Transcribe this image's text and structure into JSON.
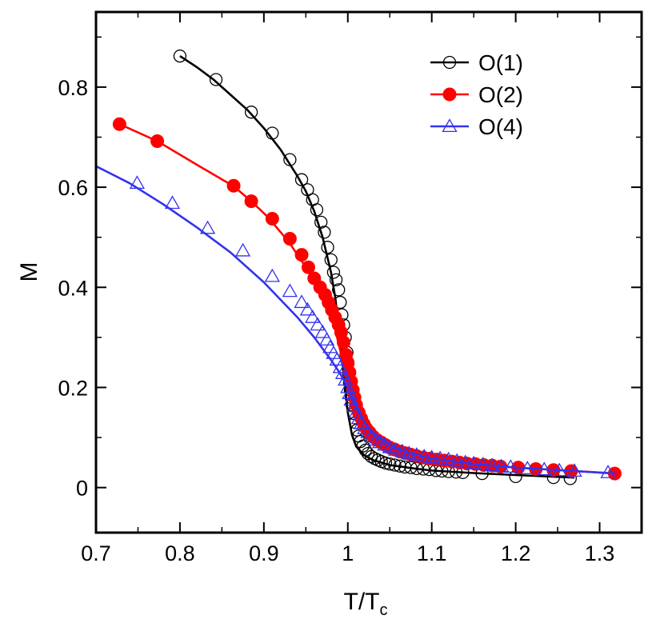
{
  "chart_data": {
    "type": "line",
    "title": "",
    "xlabel": "T/T",
    "xlabel_subscript": "c",
    "ylabel": "M",
    "xlim": [
      0.7,
      1.35
    ],
    "ylim": [
      -0.09,
      0.95
    ],
    "xticks": [
      0.7,
      0.8,
      0.9,
      1.0,
      1.1,
      1.2,
      1.3
    ],
    "xtick_labels": [
      "0.7",
      "0.8",
      "0.9",
      "1",
      "1.1",
      "1.2",
      "1.3"
    ],
    "yticks": [
      0,
      0.2,
      0.4,
      0.6,
      0.8
    ],
    "ytick_labels": [
      "0",
      "0.2",
      "0.4",
      "0.6",
      "0.8"
    ],
    "grid": false,
    "legend_position": "top-right",
    "series": [
      {
        "name": "O(1)",
        "color": "#000000",
        "marker": "open-circle",
        "curve": [
          [
            0.8,
            0.862
          ],
          [
            0.82,
            0.84
          ],
          [
            0.84,
            0.815
          ],
          [
            0.86,
            0.785
          ],
          [
            0.88,
            0.755
          ],
          [
            0.9,
            0.718
          ],
          [
            0.92,
            0.675
          ],
          [
            0.94,
            0.622
          ],
          [
            0.95,
            0.592
          ],
          [
            0.96,
            0.552
          ],
          [
            0.97,
            0.5
          ],
          [
            0.98,
            0.43
          ],
          [
            0.985,
            0.38
          ],
          [
            0.99,
            0.31
          ],
          [
            0.995,
            0.225
          ],
          [
            1.0,
            0.15
          ],
          [
            1.005,
            0.105
          ],
          [
            1.01,
            0.082
          ],
          [
            1.02,
            0.064
          ],
          [
            1.03,
            0.055
          ],
          [
            1.05,
            0.045
          ],
          [
            1.08,
            0.038
          ],
          [
            1.1,
            0.034
          ],
          [
            1.15,
            0.029
          ],
          [
            1.2,
            0.025
          ],
          [
            1.27,
            0.02
          ]
        ],
        "points": [
          [
            0.8,
            0.862
          ],
          [
            0.843,
            0.815
          ],
          [
            0.885,
            0.75
          ],
          [
            0.91,
            0.708
          ],
          [
            0.931,
            0.655
          ],
          [
            0.945,
            0.615
          ],
          [
            0.952,
            0.595
          ],
          [
            0.958,
            0.575
          ],
          [
            0.963,
            0.555
          ],
          [
            0.968,
            0.53
          ],
          [
            0.972,
            0.51
          ],
          [
            0.976,
            0.48
          ],
          [
            0.98,
            0.455
          ],
          [
            0.983,
            0.43
          ],
          [
            0.986,
            0.415
          ],
          [
            0.989,
            0.395
          ],
          [
            0.991,
            0.37
          ],
          [
            0.993,
            0.345
          ],
          [
            0.995,
            0.325
          ],
          [
            0.997,
            0.3
          ],
          [
            0.999,
            0.27
          ],
          [
            1.0,
            0.25
          ],
          [
            1.001,
            0.228
          ],
          [
            1.002,
            0.21
          ],
          [
            1.003,
            0.195
          ],
          [
            1.004,
            0.18
          ],
          [
            1.005,
            0.165
          ],
          [
            1.007,
            0.148
          ],
          [
            1.009,
            0.13
          ],
          [
            1.011,
            0.115
          ],
          [
            1.013,
            0.103
          ],
          [
            1.015,
            0.092
          ],
          [
            1.018,
            0.083
          ],
          [
            1.021,
            0.075
          ],
          [
            1.024,
            0.068
          ],
          [
            1.028,
            0.062
          ],
          [
            1.032,
            0.058
          ],
          [
            1.036,
            0.055
          ],
          [
            1.04,
            0.052
          ],
          [
            1.045,
            0.049
          ],
          [
            1.05,
            0.047
          ],
          [
            1.056,
            0.045
          ],
          [
            1.062,
            0.043
          ],
          [
            1.068,
            0.041
          ],
          [
            1.075,
            0.04
          ],
          [
            1.082,
            0.038
          ],
          [
            1.09,
            0.037
          ],
          [
            1.097,
            0.036
          ],
          [
            1.105,
            0.034
          ],
          [
            1.112,
            0.033
          ],
          [
            1.12,
            0.032
          ],
          [
            1.129,
            0.031
          ],
          [
            1.137,
            0.03
          ],
          [
            1.16,
            0.028
          ],
          [
            1.2,
            0.022
          ],
          [
            1.245,
            0.02
          ],
          [
            1.265,
            0.018
          ]
        ]
      },
      {
        "name": "O(2)",
        "color": "#ff0000",
        "marker": "filled-circle",
        "curve": [
          [
            0.728,
            0.726
          ],
          [
            0.773,
            0.692
          ],
          [
            0.82,
            0.645
          ],
          [
            0.864,
            0.602
          ],
          [
            0.885,
            0.572
          ],
          [
            0.905,
            0.54
          ],
          [
            0.93,
            0.49
          ],
          [
            0.95,
            0.44
          ],
          [
            0.965,
            0.4
          ],
          [
            0.975,
            0.365
          ],
          [
            0.985,
            0.315
          ],
          [
            0.993,
            0.26
          ],
          [
            1.0,
            0.21
          ],
          [
            1.005,
            0.175
          ],
          [
            1.01,
            0.145
          ],
          [
            1.02,
            0.115
          ],
          [
            1.03,
            0.095
          ],
          [
            1.05,
            0.075
          ],
          [
            1.07,
            0.064
          ],
          [
            1.1,
            0.055
          ],
          [
            1.15,
            0.046
          ],
          [
            1.2,
            0.04
          ],
          [
            1.25,
            0.035
          ],
          [
            1.32,
            0.028
          ]
        ],
        "points": [
          [
            0.728,
            0.726
          ],
          [
            0.773,
            0.692
          ],
          [
            0.864,
            0.603
          ],
          [
            0.885,
            0.572
          ],
          [
            0.91,
            0.537
          ],
          [
            0.931,
            0.497
          ],
          [
            0.945,
            0.465
          ],
          [
            0.953,
            0.44
          ],
          [
            0.96,
            0.418
          ],
          [
            0.967,
            0.4
          ],
          [
            0.973,
            0.385
          ],
          [
            0.977,
            0.37
          ],
          [
            0.981,
            0.355
          ],
          [
            0.985,
            0.34
          ],
          [
            0.989,
            0.325
          ],
          [
            0.992,
            0.31
          ],
          [
            0.995,
            0.29
          ],
          [
            0.998,
            0.265
          ],
          [
            1.0,
            0.248
          ],
          [
            1.002,
            0.23
          ],
          [
            1.004,
            0.212
          ],
          [
            1.006,
            0.195
          ],
          [
            1.008,
            0.18
          ],
          [
            1.01,
            0.165
          ],
          [
            1.013,
            0.15
          ],
          [
            1.016,
            0.138
          ],
          [
            1.019,
            0.127
          ],
          [
            1.022,
            0.118
          ],
          [
            1.026,
            0.11
          ],
          [
            1.03,
            0.102
          ],
          [
            1.035,
            0.095
          ],
          [
            1.04,
            0.09
          ],
          [
            1.045,
            0.085
          ],
          [
            1.05,
            0.08
          ],
          [
            1.056,
            0.076
          ],
          [
            1.062,
            0.072
          ],
          [
            1.068,
            0.069
          ],
          [
            1.075,
            0.066
          ],
          [
            1.082,
            0.063
          ],
          [
            1.09,
            0.06
          ],
          [
            1.098,
            0.058
          ],
          [
            1.106,
            0.056
          ],
          [
            1.115,
            0.054
          ],
          [
            1.124,
            0.052
          ],
          [
            1.133,
            0.05
          ],
          [
            1.142,
            0.048
          ],
          [
            1.152,
            0.047
          ],
          [
            1.162,
            0.045
          ],
          [
            1.172,
            0.044
          ],
          [
            1.182,
            0.042
          ],
          [
            1.203,
            0.04
          ],
          [
            1.224,
            0.037
          ],
          [
            1.245,
            0.035
          ],
          [
            1.266,
            0.033
          ],
          [
            1.318,
            0.028
          ]
        ]
      },
      {
        "name": "O(4)",
        "color": "#3333ee",
        "marker": "open-triangle",
        "curve": [
          [
            0.7,
            0.642
          ],
          [
            0.74,
            0.608
          ],
          [
            0.78,
            0.566
          ],
          [
            0.82,
            0.52
          ],
          [
            0.86,
            0.47
          ],
          [
            0.9,
            0.41
          ],
          [
            0.94,
            0.34
          ],
          [
            0.96,
            0.3
          ],
          [
            0.98,
            0.255
          ],
          [
            0.99,
            0.23
          ],
          [
            1.0,
            0.2
          ],
          [
            1.01,
            0.16
          ],
          [
            1.02,
            0.13
          ],
          [
            1.03,
            0.11
          ],
          [
            1.05,
            0.085
          ],
          [
            1.07,
            0.07
          ],
          [
            1.1,
            0.058
          ],
          [
            1.15,
            0.047
          ],
          [
            1.2,
            0.04
          ],
          [
            1.25,
            0.035
          ],
          [
            1.32,
            0.028
          ]
        ],
        "points": [
          [
            0.749,
            0.608
          ],
          [
            0.791,
            0.568
          ],
          [
            0.833,
            0.518
          ],
          [
            0.875,
            0.473
          ],
          [
            0.91,
            0.422
          ],
          [
            0.931,
            0.392
          ],
          [
            0.945,
            0.37
          ],
          [
            0.952,
            0.355
          ],
          [
            0.958,
            0.34
          ],
          [
            0.964,
            0.325
          ],
          [
            0.97,
            0.31
          ],
          [
            0.975,
            0.295
          ],
          [
            0.979,
            0.28
          ],
          [
            0.983,
            0.268
          ],
          [
            0.987,
            0.255
          ],
          [
            0.991,
            0.24
          ],
          [
            0.994,
            0.228
          ],
          [
            0.997,
            0.215
          ],
          [
            1.0,
            0.2
          ],
          [
            1.002,
            0.188
          ],
          [
            1.004,
            0.175
          ],
          [
            1.007,
            0.162
          ],
          [
            1.01,
            0.15
          ],
          [
            1.013,
            0.138
          ],
          [
            1.016,
            0.128
          ],
          [
            1.02,
            0.118
          ],
          [
            1.024,
            0.11
          ],
          [
            1.028,
            0.102
          ],
          [
            1.033,
            0.095
          ],
          [
            1.038,
            0.09
          ],
          [
            1.044,
            0.085
          ],
          [
            1.05,
            0.08
          ],
          [
            1.057,
            0.075
          ],
          [
            1.065,
            0.072
          ],
          [
            1.073,
            0.068
          ],
          [
            1.082,
            0.065
          ],
          [
            1.091,
            0.062
          ],
          [
            1.1,
            0.06
          ],
          [
            1.11,
            0.058
          ],
          [
            1.12,
            0.056
          ],
          [
            1.13,
            0.053
          ],
          [
            1.14,
            0.05
          ],
          [
            1.15,
            0.048
          ],
          [
            1.161,
            0.046
          ],
          [
            1.172,
            0.044
          ],
          [
            1.183,
            0.042
          ],
          [
            1.194,
            0.041
          ],
          [
            1.214,
            0.038
          ],
          [
            1.234,
            0.036
          ],
          [
            1.252,
            0.034
          ],
          [
            1.27,
            0.033
          ],
          [
            1.31,
            0.03
          ]
        ]
      }
    ]
  }
}
